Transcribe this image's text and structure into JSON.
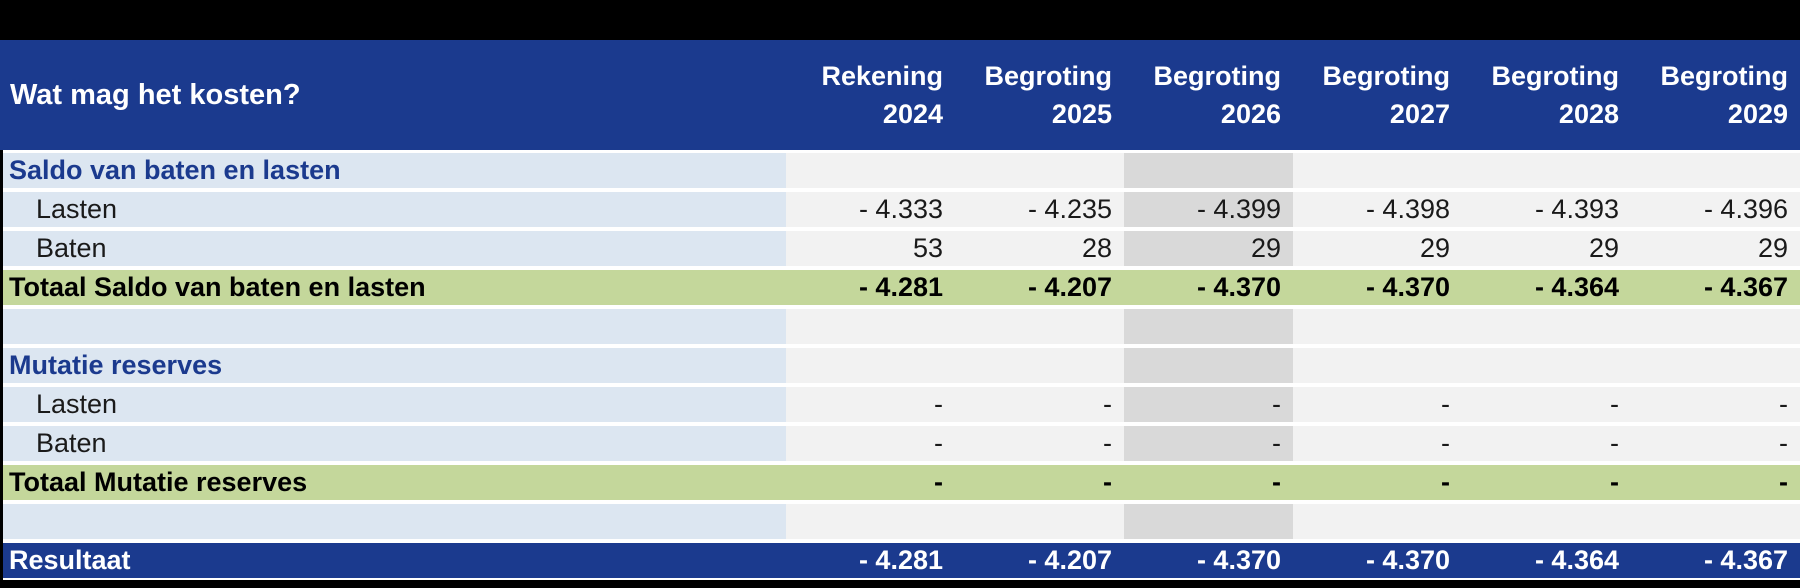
{
  "table": {
    "title": "Wat mag het kosten?",
    "columns": [
      {
        "line1": "Rekening",
        "line2": "2024"
      },
      {
        "line1": "Begroting",
        "line2": "2025"
      },
      {
        "line1": "Begroting",
        "line2": "2026"
      },
      {
        "line1": "Begroting",
        "line2": "2027"
      },
      {
        "line1": "Begroting",
        "line2": "2028"
      },
      {
        "line1": "Begroting",
        "line2": "2029"
      }
    ],
    "highlighted_column": "Begroting 2026",
    "rows": [
      {
        "type": "section",
        "label": "Saldo van baten en lasten",
        "values": [
          "",
          "",
          "",
          "",
          "",
          ""
        ]
      },
      {
        "type": "data",
        "label": "Lasten",
        "values": [
          "- 4.333",
          "- 4.235",
          "- 4.399",
          "- 4.398",
          "- 4.393",
          "- 4.396"
        ]
      },
      {
        "type": "data",
        "label": "Baten",
        "values": [
          "53",
          "28",
          "29",
          "29",
          "29",
          "29"
        ]
      },
      {
        "type": "total",
        "label": "Totaal Saldo van baten en lasten",
        "values": [
          "- 4.281",
          "- 4.207",
          "- 4.370",
          "- 4.370",
          "- 4.364",
          "- 4.367"
        ]
      },
      {
        "type": "spacer",
        "label": "",
        "values": [
          "",
          "",
          "",
          "",
          "",
          ""
        ]
      },
      {
        "type": "section",
        "label": "Mutatie reserves",
        "values": [
          "",
          "",
          "",
          "",
          "",
          ""
        ]
      },
      {
        "type": "data",
        "label": "Lasten",
        "values": [
          "-",
          "-",
          "-",
          "-",
          "-",
          "-"
        ]
      },
      {
        "type": "data",
        "label": "Baten",
        "values": [
          "-",
          "-",
          "-",
          "-",
          "-",
          "-"
        ]
      },
      {
        "type": "total",
        "label": "Totaal Mutatie reserves",
        "values": [
          "-",
          "-",
          "-",
          "-",
          "-",
          "-"
        ]
      },
      {
        "type": "spacer",
        "label": "",
        "values": [
          "",
          "",
          "",
          "",
          "",
          ""
        ]
      },
      {
        "type": "result",
        "label": "Resultaat",
        "values": [
          "- 4.281",
          "- 4.207",
          "- 4.370",
          "- 4.370",
          "- 4.364",
          "- 4.367"
        ]
      }
    ],
    "colors": {
      "header_bg": "#1b3a8e",
      "header_text": "#ffffff",
      "label_column_bg": "#dce6f1",
      "section_text": "#1b3a8e",
      "value_cell_bg": "#f2f2f2",
      "highlight_column_bg": "#d9d9d9",
      "total_row_bg": "#c4d79b",
      "result_row_bg": "#1b3a8e",
      "frame": "#000000"
    }
  }
}
